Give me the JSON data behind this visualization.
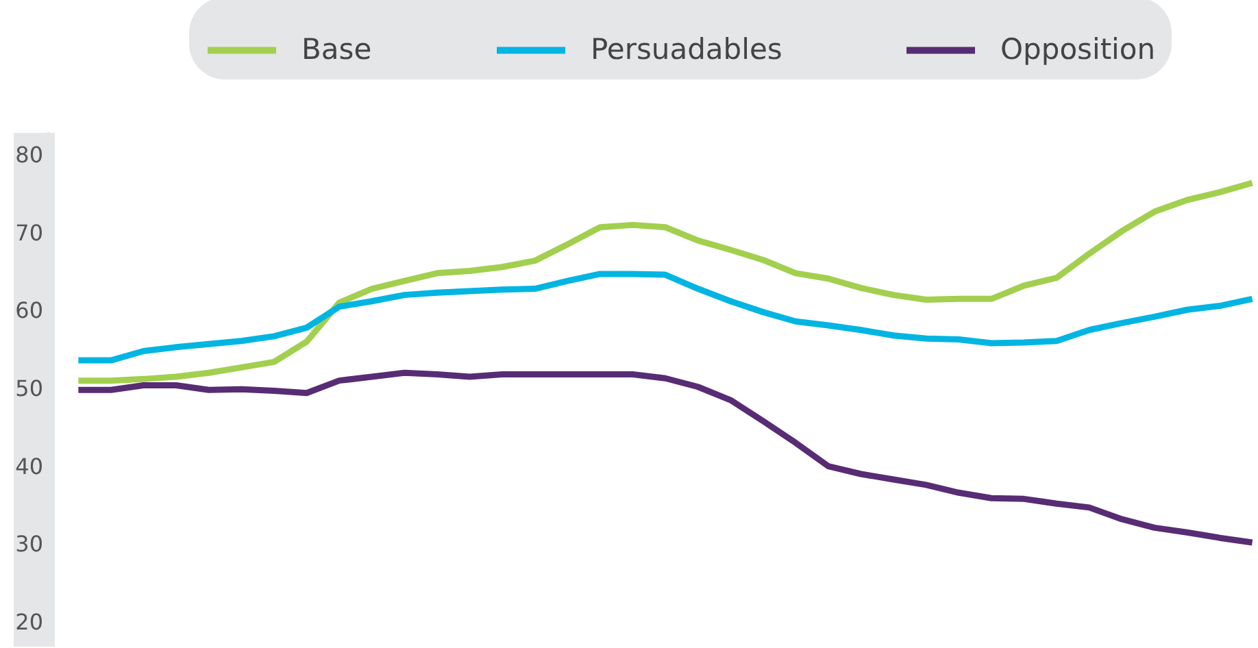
{
  "chart_data": {
    "type": "line",
    "categories": [
      null,
      null,
      null,
      null,
      null,
      null,
      null,
      null,
      null,
      null,
      null,
      null,
      null,
      null,
      null,
      null,
      null,
      null,
      null,
      null,
      null,
      null,
      null,
      null,
      null,
      null,
      null,
      null,
      null,
      null,
      null,
      null,
      null,
      null,
      null,
      null,
      null
    ],
    "series": [
      {
        "name": "Base",
        "color": "#a3cf4f",
        "values": [
          51,
          51,
          51.2,
          51.5,
          52,
          52.7,
          53.4,
          56,
          61,
          62.8,
          63.8,
          64.8,
          65.1,
          65.6,
          66.4,
          68.5,
          70.7,
          71,
          70.7,
          69,
          67.8,
          66.5,
          64.8,
          64.1,
          62.9,
          62,
          61.4,
          61.5,
          61.5,
          63.2,
          64.2,
          67.3,
          70.2,
          72.7,
          74.2,
          75.2,
          76.4
        ]
      },
      {
        "name": "Persuadables",
        "color": "#00b5e2",
        "values": [
          53.6,
          53.6,
          54.8,
          55.3,
          55.7,
          56.1,
          56.7,
          57.8,
          60.5,
          61.2,
          62,
          62.3,
          62.5,
          62.7,
          62.8,
          63.8,
          64.7,
          64.7,
          64.6,
          62.8,
          61.2,
          59.8,
          58.6,
          58.1,
          57.5,
          56.8,
          56.4,
          56.3,
          55.8,
          55.9,
          56.1,
          57.5,
          58.4,
          59.2,
          60.1,
          60.6,
          61.5
        ]
      },
      {
        "name": "Opposition",
        "color": "#582c74",
        "values": [
          49.8,
          49.8,
          50.4,
          50.4,
          49.8,
          49.9,
          49.7,
          49.4,
          51,
          51.5,
          52,
          51.8,
          51.5,
          51.8,
          51.8,
          51.8,
          51.8,
          51.8,
          51.3,
          50.2,
          48.5,
          45.8,
          43,
          40,
          39,
          38.3,
          37.6,
          36.6,
          35.9,
          35.8,
          35.2,
          34.7,
          33.2,
          32.1,
          31.5,
          30.8,
          30.2
        ]
      }
    ],
    "ylim": [
      17,
      83
    ],
    "yticks": [
      20,
      30,
      40,
      50,
      60,
      70,
      80
    ],
    "legend": "top",
    "tick_labels": "y"
  }
}
